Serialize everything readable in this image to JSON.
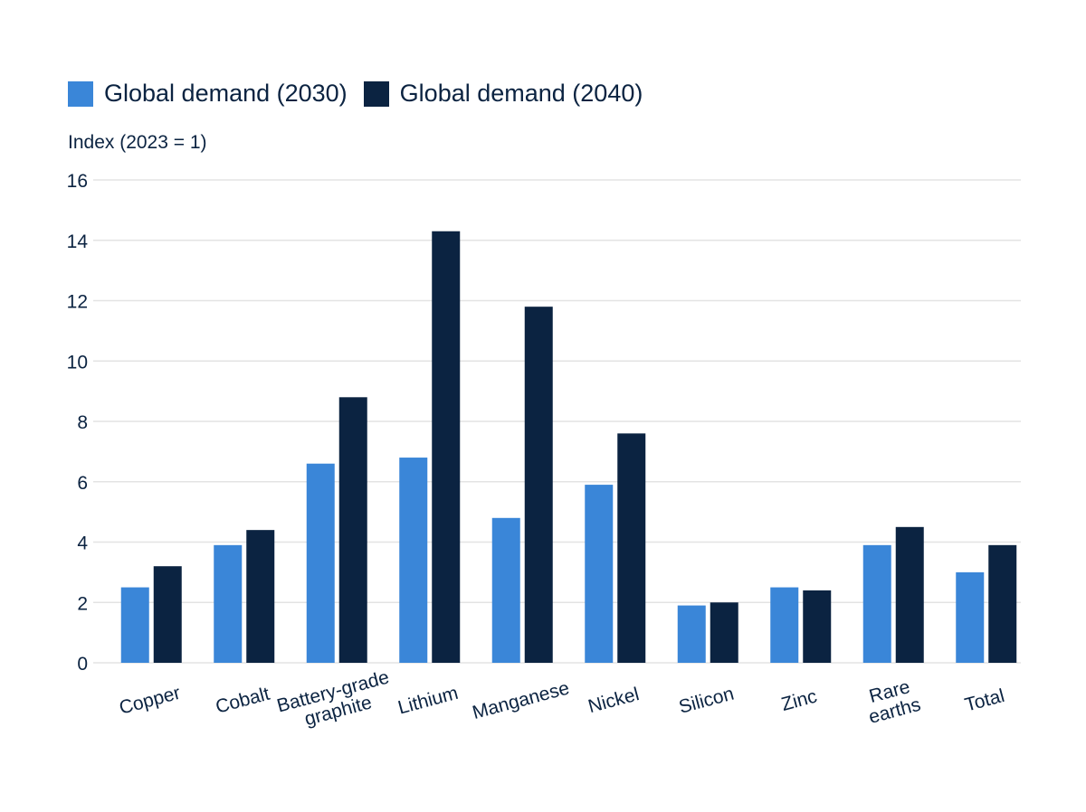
{
  "chart_data": {
    "type": "bar",
    "categories": [
      "Copper",
      "Cobalt",
      "Battery-grade graphite",
      "Lithium",
      "Manganese",
      "Nickel",
      "Silicon",
      "Zinc",
      "Rare earths",
      "Total"
    ],
    "category_lines": [
      [
        "Copper"
      ],
      [
        "Cobalt"
      ],
      [
        "Battery-grade",
        "graphite"
      ],
      [
        "Lithium"
      ],
      [
        "Manganese"
      ],
      [
        "Nickel"
      ],
      [
        "Silicon"
      ],
      [
        "Zinc"
      ],
      [
        "Rare",
        "earths"
      ],
      [
        "Total"
      ]
    ],
    "series": [
      {
        "name": "Global demand (2030)",
        "color": "#3a86d8",
        "values": [
          2.5,
          3.9,
          6.6,
          6.8,
          4.8,
          5.9,
          1.9,
          2.5,
          3.9,
          3.0
        ]
      },
      {
        "name": "Global demand (2040)",
        "color": "#0b2341",
        "values": [
          3.2,
          4.4,
          8.8,
          14.3,
          11.8,
          7.6,
          2.0,
          2.4,
          4.5,
          3.9
        ]
      }
    ],
    "ylabel": "Index (2023 = 1)",
    "ylim": [
      0,
      16
    ],
    "yticks": [
      0,
      2,
      4,
      6,
      8,
      10,
      12,
      14,
      16
    ],
    "grid": true,
    "grid_color": "#e3e3e3",
    "legend_placement": "top-left"
  }
}
